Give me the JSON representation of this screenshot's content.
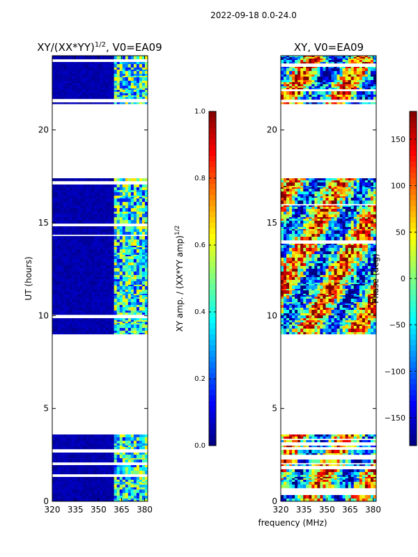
{
  "suptitle": "2022-09-18 0.0-24.0",
  "chart_data": [
    {
      "type": "heatmap",
      "title": "XY/(XX*YY)^1/2, V0=EA09",
      "title_main": "XY/(XX*YY)",
      "title_exp": "1/2",
      "title_tail": ", V0=EA09",
      "ylabel": "UT (hours)",
      "xlim": [
        320,
        382
      ],
      "ylim": [
        0,
        24
      ],
      "xticks": [
        320,
        335,
        350,
        365,
        380
      ],
      "yticks": [
        0,
        5,
        10,
        15,
        20
      ],
      "colormap": "jet",
      "data_time_ranges_hours": [
        [
          0,
          3.6
        ],
        [
          9.0,
          17.4
        ],
        [
          21.4,
          24
        ]
      ],
      "colorbar": {
        "label_main": "XY amp. / (XX*YY amp)",
        "label_exp": "1/2",
        "range": [
          0.0,
          1.0
        ],
        "ticks": [
          "0.0",
          "0.2",
          "0.4",
          "0.6",
          "0.8",
          "1.0"
        ],
        "tick_values": [
          0.0,
          0.2,
          0.4,
          0.6,
          0.8,
          1.0
        ]
      }
    },
    {
      "type": "heatmap",
      "title": "XY, V0=EA09",
      "xlabel": "frequency (MHz)",
      "xlim": [
        320,
        382
      ],
      "ylim": [
        0,
        24
      ],
      "xticks": [
        320,
        335,
        350,
        365,
        380
      ],
      "yticks": [
        0,
        5,
        10,
        15,
        20
      ],
      "colormap": "jet",
      "data_time_ranges_hours": [
        [
          0,
          3.6
        ],
        [
          9.0,
          17.4
        ],
        [
          21.4,
          24
        ]
      ],
      "colorbar": {
        "label": "Phase (deg)",
        "range": [
          -180,
          180
        ],
        "ticks": [
          "150",
          "100",
          "50",
          "0",
          "−50",
          "−100",
          "−150"
        ],
        "tick_values": [
          150,
          100,
          50,
          0,
          -50,
          -100,
          -150
        ]
      }
    }
  ]
}
